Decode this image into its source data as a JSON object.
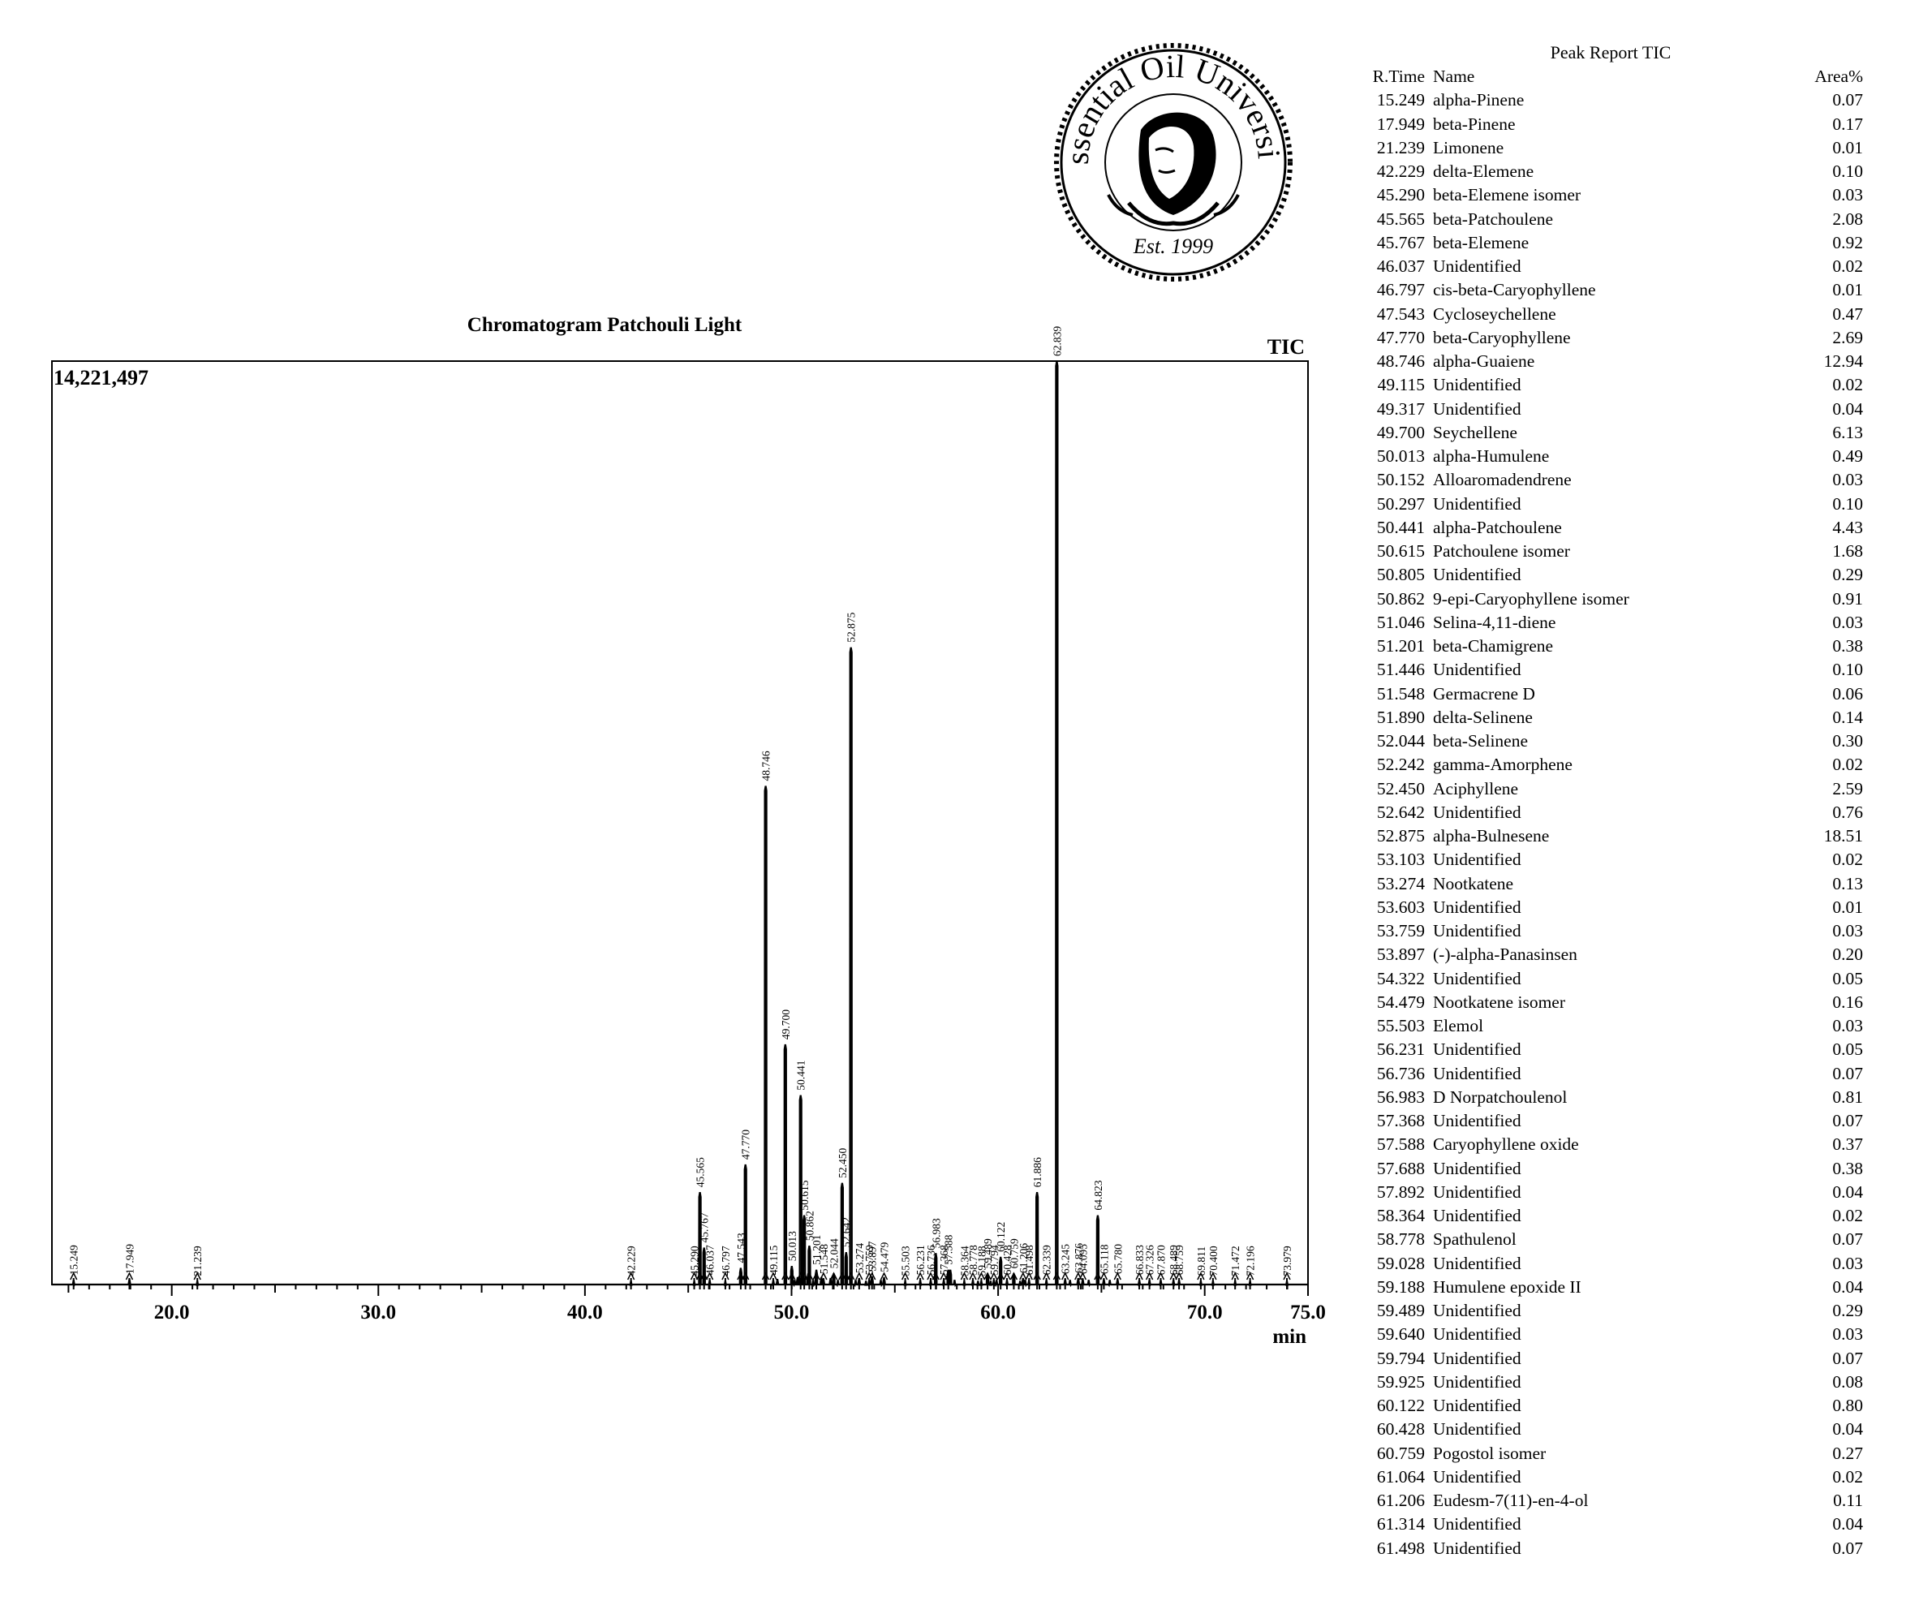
{
  "logo": {
    "title": "Essential Oil University",
    "est": "Est. 1999"
  },
  "chart_data": {
    "type": "line",
    "title": "Chromatogram Patchouli Light",
    "trace_label": "TIC",
    "y_max_label": "14,221,497",
    "xlabel": "min",
    "xlim": [
      14.2,
      75.0
    ],
    "ylim": [
      0,
      14221497
    ],
    "x_ticks": [
      "20.0",
      "30.0",
      "40.0",
      "50.0",
      "60.0",
      "70.0",
      "75.0"
    ],
    "x_tick_values": [
      20,
      30,
      40,
      50,
      60,
      70,
      75
    ],
    "peaks": [
      {
        "x": 15.249,
        "y": 0.005
      },
      {
        "x": 17.949,
        "y": 0.006
      },
      {
        "x": 21.239,
        "y": 0.004
      },
      {
        "x": 42.229,
        "y": 0.004
      },
      {
        "x": 45.29,
        "y": 0.004
      },
      {
        "x": 45.565,
        "y": 0.1
      },
      {
        "x": 45.767,
        "y": 0.04
      },
      {
        "x": 46.037,
        "y": 0.005
      },
      {
        "x": 46.797,
        "y": 0.004
      },
      {
        "x": 47.543,
        "y": 0.018
      },
      {
        "x": 47.77,
        "y": 0.13
      },
      {
        "x": 48.746,
        "y": 0.54
      },
      {
        "x": 49.115,
        "y": 0.005
      },
      {
        "x": 49.317,
        "y": 0.006
      },
      {
        "x": 49.7,
        "y": 0.26
      },
      {
        "x": 50.013,
        "y": 0.02
      },
      {
        "x": 50.152,
        "y": 0.005
      },
      {
        "x": 50.297,
        "y": 0.008
      },
      {
        "x": 50.441,
        "y": 0.205
      },
      {
        "x": 50.615,
        "y": 0.075
      },
      {
        "x": 50.805,
        "y": 0.012
      },
      {
        "x": 50.862,
        "y": 0.042
      },
      {
        "x": 51.046,
        "y": 0.005
      },
      {
        "x": 51.201,
        "y": 0.016
      },
      {
        "x": 51.446,
        "y": 0.008
      },
      {
        "x": 51.548,
        "y": 0.006
      },
      {
        "x": 51.89,
        "y": 0.007
      },
      {
        "x": 52.044,
        "y": 0.012
      },
      {
        "x": 52.242,
        "y": 0.005
      },
      {
        "x": 52.45,
        "y": 0.11
      },
      {
        "x": 52.642,
        "y": 0.035
      },
      {
        "x": 52.875,
        "y": 0.69
      },
      {
        "x": 53.103,
        "y": 0.005
      },
      {
        "x": 53.274,
        "y": 0.007
      },
      {
        "x": 53.603,
        "y": 0.004
      },
      {
        "x": 53.759,
        "y": 0.005
      },
      {
        "x": 53.897,
        "y": 0.009
      },
      {
        "x": 54.322,
        "y": 0.005
      },
      {
        "x": 54.479,
        "y": 0.008
      },
      {
        "x": 55.503,
        "y": 0.004
      },
      {
        "x": 56.231,
        "y": 0.005
      },
      {
        "x": 56.736,
        "y": 0.005
      },
      {
        "x": 56.983,
        "y": 0.034
      },
      {
        "x": 57.368,
        "y": 0.005
      },
      {
        "x": 57.588,
        "y": 0.016
      },
      {
        "x": 57.688,
        "y": 0.016
      },
      {
        "x": 57.892,
        "y": 0.005
      },
      {
        "x": 58.364,
        "y": 0.004
      },
      {
        "x": 58.778,
        "y": 0.005
      },
      {
        "x": 59.028,
        "y": 0.004
      },
      {
        "x": 59.188,
        "y": 0.004
      },
      {
        "x": 59.489,
        "y": 0.012
      },
      {
        "x": 59.64,
        "y": 0.004
      },
      {
        "x": 59.794,
        "y": 0.005
      },
      {
        "x": 59.925,
        "y": 0.005
      },
      {
        "x": 60.122,
        "y": 0.03
      },
      {
        "x": 60.428,
        "y": 0.005
      },
      {
        "x": 60.759,
        "y": 0.012
      },
      {
        "x": 61.064,
        "y": 0.004
      },
      {
        "x": 61.206,
        "y": 0.007
      },
      {
        "x": 61.314,
        "y": 0.005
      },
      {
        "x": 61.498,
        "y": 0.005
      },
      {
        "x": 61.886,
        "y": 0.1
      },
      {
        "x": 62.339,
        "y": 0.005
      },
      {
        "x": 62.839,
        "y": 1.0
      },
      {
        "x": 63.245,
        "y": 0.006
      },
      {
        "x": 63.481,
        "y": 0.005
      },
      {
        "x": 63.876,
        "y": 0.007
      },
      {
        "x": 64.095,
        "y": 0.006
      },
      {
        "x": 64.384,
        "y": 0.005
      },
      {
        "x": 64.823,
        "y": 0.075
      },
      {
        "x": 65.118,
        "y": 0.006
      },
      {
        "x": 65.403,
        "y": 0.005
      },
      {
        "x": 65.78,
        "y": 0.006
      },
      {
        "x": 66.833,
        "y": 0.005
      },
      {
        "x": 67.326,
        "y": 0.005
      },
      {
        "x": 67.87,
        "y": 0.005
      },
      {
        "x": 68.489,
        "y": 0.005
      },
      {
        "x": 68.759,
        "y": 0.005
      },
      {
        "x": 69.811,
        "y": 0.004
      },
      {
        "x": 70.4,
        "y": 0.004
      },
      {
        "x": 71.472,
        "y": 0.004
      },
      {
        "x": 72.196,
        "y": 0.004
      },
      {
        "x": 73.979,
        "y": 0.004
      }
    ],
    "peak_labels": [
      {
        "x": 15.249,
        "y": 0.005,
        "text": "15.249"
      },
      {
        "x": 17.949,
        "y": 0.006,
        "text": "17.949"
      },
      {
        "x": 21.239,
        "y": 0.004,
        "text": "21.239"
      },
      {
        "x": 42.229,
        "y": 0.004,
        "text": "42.229"
      },
      {
        "x": 45.29,
        "y": 0.004,
        "text": "45.290"
      },
      {
        "x": 45.565,
        "y": 0.1,
        "text": "45.565"
      },
      {
        "x": 45.767,
        "y": 0.04,
        "text": "45.767"
      },
      {
        "x": 46.037,
        "y": 0.005,
        "text": "46.037"
      },
      {
        "x": 46.797,
        "y": 0.004,
        "text": "46.797"
      },
      {
        "x": 47.543,
        "y": 0.018,
        "text": "47.543"
      },
      {
        "x": 47.77,
        "y": 0.13,
        "text": "47.770"
      },
      {
        "x": 48.746,
        "y": 0.54,
        "text": "48.746"
      },
      {
        "x": 49.115,
        "y": 0.005,
        "text": "49.115"
      },
      {
        "x": 49.7,
        "y": 0.26,
        "text": "49.700"
      },
      {
        "x": 50.013,
        "y": 0.02,
        "text": "50.013"
      },
      {
        "x": 50.441,
        "y": 0.205,
        "text": "50.441"
      },
      {
        "x": 50.615,
        "y": 0.075,
        "text": "50.615"
      },
      {
        "x": 50.862,
        "y": 0.042,
        "text": "50.862"
      },
      {
        "x": 51.201,
        "y": 0.016,
        "text": "51.201"
      },
      {
        "x": 51.548,
        "y": 0.006,
        "text": "51.548"
      },
      {
        "x": 52.044,
        "y": 0.012,
        "text": "52.044"
      },
      {
        "x": 52.45,
        "y": 0.11,
        "text": "52.450"
      },
      {
        "x": 52.642,
        "y": 0.035,
        "text": "52.642"
      },
      {
        "x": 52.875,
        "y": 0.69,
        "text": "52.875"
      },
      {
        "x": 53.274,
        "y": 0.007,
        "text": "53.274"
      },
      {
        "x": 53.759,
        "y": 0.005,
        "text": "53.759"
      },
      {
        "x": 53.897,
        "y": 0.009,
        "text": "53.897"
      },
      {
        "x": 54.479,
        "y": 0.008,
        "text": "54.479"
      },
      {
        "x": 55.503,
        "y": 0.004,
        "text": "55.503"
      },
      {
        "x": 56.231,
        "y": 0.005,
        "text": "56.231"
      },
      {
        "x": 56.736,
        "y": 0.005,
        "text": "56.736"
      },
      {
        "x": 56.983,
        "y": 0.034,
        "text": "56.983"
      },
      {
        "x": 57.368,
        "y": 0.005,
        "text": "57.368"
      },
      {
        "x": 57.588,
        "y": 0.016,
        "text": "57.588"
      },
      {
        "x": 58.364,
        "y": 0.004,
        "text": "58.364"
      },
      {
        "x": 58.778,
        "y": 0.005,
        "text": "58.778"
      },
      {
        "x": 59.188,
        "y": 0.004,
        "text": "59.188"
      },
      {
        "x": 59.489,
        "y": 0.012,
        "text": "59.489"
      },
      {
        "x": 59.794,
        "y": 0.005,
        "text": "59.794"
      },
      {
        "x": 60.122,
        "y": 0.03,
        "text": "60.122"
      },
      {
        "x": 60.428,
        "y": 0.005,
        "text": "60.428"
      },
      {
        "x": 60.759,
        "y": 0.012,
        "text": "60.759"
      },
      {
        "x": 61.206,
        "y": 0.007,
        "text": "61.206"
      },
      {
        "x": 61.498,
        "y": 0.005,
        "text": "61.498"
      },
      {
        "x": 61.886,
        "y": 0.1,
        "text": "61.886"
      },
      {
        "x": 62.339,
        "y": 0.005,
        "text": "62.339"
      },
      {
        "x": 62.839,
        "y": 1.0,
        "text": "62.839"
      },
      {
        "x": 63.245,
        "y": 0.006,
        "text": "63.245"
      },
      {
        "x": 63.876,
        "y": 0.007,
        "text": "63.876"
      },
      {
        "x": 64.095,
        "y": 0.006,
        "text": "64.095"
      },
      {
        "x": 64.823,
        "y": 0.075,
        "text": "64.823"
      },
      {
        "x": 65.118,
        "y": 0.006,
        "text": "65.118"
      },
      {
        "x": 65.78,
        "y": 0.006,
        "text": "65.780"
      },
      {
        "x": 66.833,
        "y": 0.005,
        "text": "66.833"
      },
      {
        "x": 67.326,
        "y": 0.005,
        "text": "67.326"
      },
      {
        "x": 67.87,
        "y": 0.005,
        "text": "67.870"
      },
      {
        "x": 68.489,
        "y": 0.005,
        "text": "68.489"
      },
      {
        "x": 68.759,
        "y": 0.005,
        "text": "68.759"
      },
      {
        "x": 69.811,
        "y": 0.004,
        "text": "69.811"
      },
      {
        "x": 70.4,
        "y": 0.004,
        "text": "70.400"
      },
      {
        "x": 71.472,
        "y": 0.004,
        "text": "71.472"
      },
      {
        "x": 72.196,
        "y": 0.004,
        "text": "72.196"
      },
      {
        "x": 73.979,
        "y": 0.004,
        "text": "73.979"
      }
    ]
  },
  "peak_report": {
    "title": "Peak Report TIC",
    "headers": {
      "rtime": "R.Time",
      "name": "Name",
      "area": "Area%"
    },
    "rows": [
      {
        "rtime": "15.249",
        "name": "alpha-Pinene",
        "area": "0.07"
      },
      {
        "rtime": "17.949",
        "name": "beta-Pinene",
        "area": "0.17"
      },
      {
        "rtime": "21.239",
        "name": "Limonene",
        "area": "0.01"
      },
      {
        "rtime": "42.229",
        "name": "delta-Elemene",
        "area": "0.10"
      },
      {
        "rtime": "45.290",
        "name": "beta-Elemene isomer",
        "area": "0.03"
      },
      {
        "rtime": "45.565",
        "name": "beta-Patchoulene",
        "area": "2.08"
      },
      {
        "rtime": "45.767",
        "name": "beta-Elemene",
        "area": "0.92"
      },
      {
        "rtime": "46.037",
        "name": "Unidentified",
        "area": "0.02"
      },
      {
        "rtime": "46.797",
        "name": "cis-beta-Caryophyllene",
        "area": "0.01"
      },
      {
        "rtime": "47.543",
        "name": "Cycloseychellene",
        "area": "0.47"
      },
      {
        "rtime": "47.770",
        "name": "beta-Caryophyllene",
        "area": "2.69"
      },
      {
        "rtime": "48.746",
        "name": "alpha-Guaiene",
        "area": "12.94"
      },
      {
        "rtime": "49.115",
        "name": "Unidentified",
        "area": "0.02"
      },
      {
        "rtime": "49.317",
        "name": "Unidentified",
        "area": "0.04"
      },
      {
        "rtime": "49.700",
        "name": "Seychellene",
        "area": "6.13"
      },
      {
        "rtime": "50.013",
        "name": "alpha-Humulene",
        "area": "0.49"
      },
      {
        "rtime": "50.152",
        "name": "Alloaromadendrene",
        "area": "0.03"
      },
      {
        "rtime": "50.297",
        "name": "Unidentified",
        "area": "0.10"
      },
      {
        "rtime": "50.441",
        "name": "alpha-Patchoulene",
        "area": "4.43"
      },
      {
        "rtime": "50.615",
        "name": "Patchoulene isomer",
        "area": "1.68"
      },
      {
        "rtime": "50.805",
        "name": "Unidentified",
        "area": "0.29"
      },
      {
        "rtime": "50.862",
        "name": "9-epi-Caryophyllene isomer",
        "area": "0.91"
      },
      {
        "rtime": "51.046",
        "name": "Selina-4,11-diene",
        "area": "0.03"
      },
      {
        "rtime": "51.201",
        "name": "beta-Chamigrene",
        "area": "0.38"
      },
      {
        "rtime": "51.446",
        "name": "Unidentified",
        "area": "0.10"
      },
      {
        "rtime": "51.548",
        "name": "Germacrene D",
        "area": "0.06"
      },
      {
        "rtime": "51.890",
        "name": "delta-Selinene",
        "area": "0.14"
      },
      {
        "rtime": "52.044",
        "name": "beta-Selinene",
        "area": "0.30"
      },
      {
        "rtime": "52.242",
        "name": "gamma-Amorphene",
        "area": "0.02"
      },
      {
        "rtime": "52.450",
        "name": "Aciphyllene",
        "area": "2.59"
      },
      {
        "rtime": "52.642",
        "name": "Unidentified",
        "area": "0.76"
      },
      {
        "rtime": "52.875",
        "name": "alpha-Bulnesene",
        "area": "18.51"
      },
      {
        "rtime": "53.103",
        "name": "Unidentified",
        "area": "0.02"
      },
      {
        "rtime": "53.274",
        "name": "Nootkatene",
        "area": "0.13"
      },
      {
        "rtime": "53.603",
        "name": "Unidentified",
        "area": "0.01"
      },
      {
        "rtime": "53.759",
        "name": "Unidentified",
        "area": "0.03"
      },
      {
        "rtime": "53.897",
        "name": "(-)-alpha-Panasinsen",
        "area": "0.20"
      },
      {
        "rtime": "54.322",
        "name": "Unidentified",
        "area": "0.05"
      },
      {
        "rtime": "54.479",
        "name": "Nootkatene isomer",
        "area": "0.16"
      },
      {
        "rtime": "55.503",
        "name": "Elemol",
        "area": "0.03"
      },
      {
        "rtime": "56.231",
        "name": "Unidentified",
        "area": "0.05"
      },
      {
        "rtime": "56.736",
        "name": "Unidentified",
        "area": "0.07"
      },
      {
        "rtime": "56.983",
        "name": "D Norpatchoulenol",
        "area": "0.81"
      },
      {
        "rtime": "57.368",
        "name": "Unidentified",
        "area": "0.07"
      },
      {
        "rtime": "57.588",
        "name": "Caryophyllene oxide",
        "area": "0.37"
      },
      {
        "rtime": "57.688",
        "name": "Unidentified",
        "area": "0.38"
      },
      {
        "rtime": "57.892",
        "name": "Unidentified",
        "area": "0.04"
      },
      {
        "rtime": "58.364",
        "name": "Unidentified",
        "area": "0.02"
      },
      {
        "rtime": "58.778",
        "name": "Spathulenol",
        "area": "0.07"
      },
      {
        "rtime": "59.028",
        "name": "Unidentified",
        "area": "0.03"
      },
      {
        "rtime": "59.188",
        "name": "Humulene epoxide II",
        "area": "0.04"
      },
      {
        "rtime": "59.489",
        "name": "Unidentified",
        "area": "0.29"
      },
      {
        "rtime": "59.640",
        "name": "Unidentified",
        "area": "0.03"
      },
      {
        "rtime": "59.794",
        "name": "Unidentified",
        "area": "0.07"
      },
      {
        "rtime": "59.925",
        "name": "Unidentified",
        "area": "0.08"
      },
      {
        "rtime": "60.122",
        "name": "Unidentified",
        "area": "0.80"
      },
      {
        "rtime": "60.428",
        "name": "Unidentified",
        "area": "0.04"
      },
      {
        "rtime": "60.759",
        "name": "Pogostol isomer",
        "area": "0.27"
      },
      {
        "rtime": "61.064",
        "name": "Unidentified",
        "area": "0.02"
      },
      {
        "rtime": "61.206",
        "name": "Eudesm-7(11)-en-4-ol",
        "area": "0.11"
      },
      {
        "rtime": "61.314",
        "name": "Unidentified",
        "area": "0.04"
      },
      {
        "rtime": "61.498",
        "name": "Unidentified",
        "area": "0.07"
      }
    ]
  }
}
